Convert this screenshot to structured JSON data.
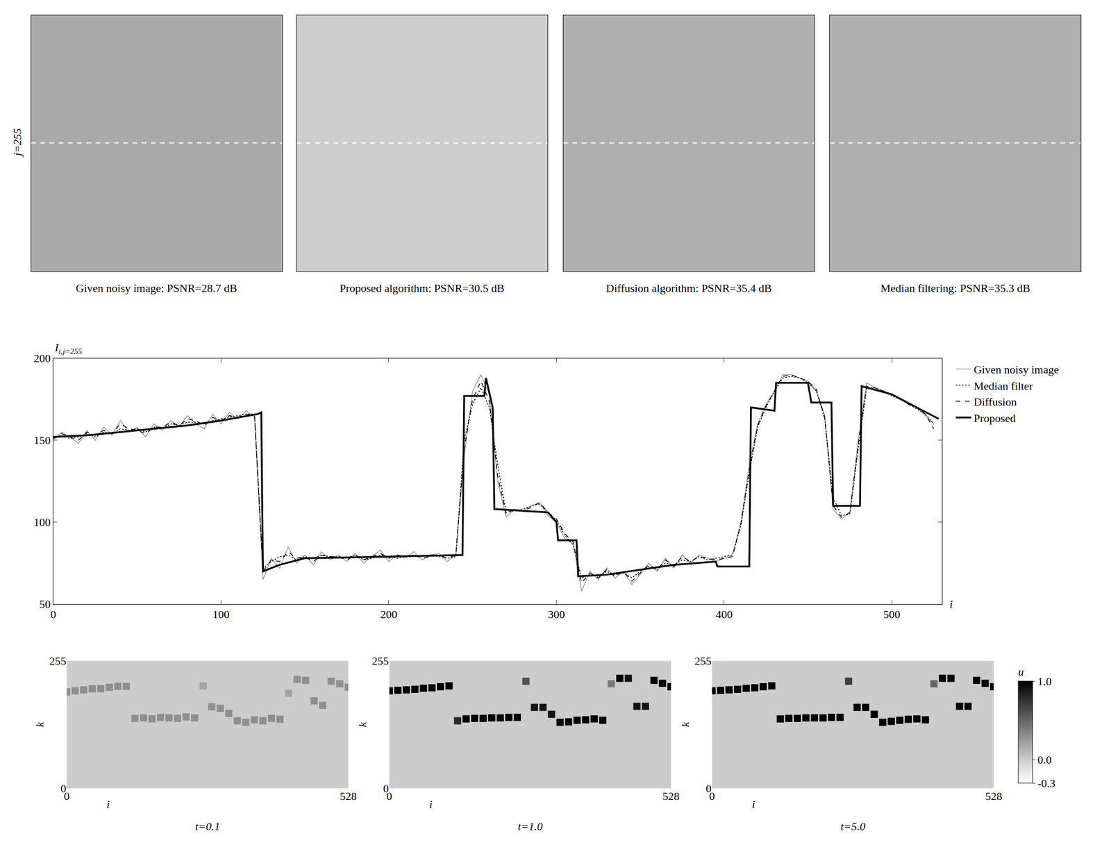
{
  "chart_data": [
    {
      "type": "image_panels",
      "captions": [
        "Given noisy image: PSNR=28.7 dB",
        "Proposed algorithm: PSNR=30.5 dB",
        "Diffusion algorithm: PSNR=35.4 dB",
        "Median filtering: PSNR=35.3 dB"
      ],
      "row_label": "j=255",
      "row": 255,
      "xlim": [
        0,
        528
      ],
      "ylim": [
        511,
        0
      ],
      "tick_labels": false
    },
    {
      "type": "line",
      "ylabel": {
        "main": "I",
        "sub": "i,j=255"
      },
      "xlabel": "i",
      "xlim": [
        0,
        530
      ],
      "ylim": [
        50,
        200
      ],
      "xticks": [
        0,
        100,
        200,
        300,
        400,
        500
      ],
      "yticks": [
        50,
        100,
        150,
        200
      ],
      "grid": false,
      "legend": "right",
      "x": [
        0,
        5,
        10,
        15,
        20,
        25,
        30,
        35,
        40,
        45,
        50,
        55,
        60,
        65,
        70,
        75,
        80,
        85,
        90,
        95,
        100,
        105,
        110,
        115,
        120,
        125,
        130,
        135,
        140,
        145,
        150,
        155,
        160,
        165,
        170,
        175,
        180,
        185,
        190,
        195,
        200,
        205,
        210,
        215,
        220,
        225,
        230,
        235,
        240,
        245,
        250,
        255,
        260,
        265,
        270,
        275,
        280,
        285,
        290,
        295,
        300,
        305,
        310,
        315,
        320,
        325,
        330,
        335,
        340,
        345,
        350,
        355,
        360,
        365,
        370,
        375,
        380,
        385,
        390,
        395,
        400,
        405,
        410,
        415,
        420,
        425,
        430,
        435,
        440,
        445,
        450,
        455,
        460,
        465,
        470,
        475,
        480,
        485,
        490,
        495,
        500,
        505,
        510,
        515,
        520,
        525
      ],
      "series": [
        {
          "name": "Given noisy image",
          "color": "#999999",
          "line_style": "solid",
          "values": [
            150,
            155,
            152,
            148,
            156,
            150,
            158,
            153,
            162,
            155,
            158,
            152,
            160,
            156,
            162,
            158,
            165,
            160,
            157,
            166,
            160,
            167,
            163,
            168,
            164,
            65,
            78,
            72,
            85,
            75,
            80,
            74,
            82,
            77,
            80,
            76,
            81,
            75,
            79,
            83,
            76,
            80,
            78,
            82,
            77,
            80,
            81,
            76,
            80,
            140,
            180,
            190,
            178,
            125,
            103,
            108,
            107,
            110,
            112,
            104,
            100,
            90,
            87,
            58,
            70,
            65,
            72,
            66,
            70,
            62,
            68,
            75,
            70,
            78,
            72,
            80,
            75,
            80,
            78,
            76,
            78,
            80,
            100,
            135,
            160,
            172,
            180,
            190,
            190,
            188,
            186,
            180,
            165,
            108,
            102,
            106,
            150,
            185,
            182,
            180,
            178,
            175,
            172,
            170,
            165,
            160
          ]
        },
        {
          "name": "Median filter",
          "color": "#000000",
          "line_style": "dotted",
          "values": [
            152,
            153,
            151,
            152,
            154,
            152,
            155,
            154,
            157,
            156,
            157,
            155,
            158,
            157,
            160,
            159,
            161,
            161,
            160,
            162,
            163,
            164,
            165,
            166,
            166,
            72,
            76,
            79,
            80,
            77,
            79,
            78,
            80,
            79,
            79,
            78,
            80,
            77,
            78,
            80,
            79,
            78,
            79,
            80,
            79,
            80,
            79,
            78,
            79,
            150,
            172,
            182,
            170,
            135,
            106,
            107,
            108,
            110,
            111,
            106,
            101,
            92,
            86,
            66,
            68,
            67,
            70,
            68,
            69,
            66,
            70,
            73,
            71,
            75,
            74,
            77,
            76,
            79,
            77,
            78,
            79,
            80,
            98,
            130,
            158,
            170,
            180,
            188,
            189,
            188,
            185,
            180,
            163,
            115,
            104,
            105,
            145,
            182,
            182,
            180,
            177,
            175,
            172,
            169,
            166,
            160
          ]
        },
        {
          "name": "Diffusion",
          "color": "#000000",
          "line_style": "dashed",
          "values": [
            151,
            154,
            152,
            150,
            155,
            153,
            156,
            154,
            160,
            157,
            156,
            154,
            158,
            158,
            161,
            159,
            163,
            162,
            159,
            164,
            162,
            165,
            164,
            166,
            165,
            70,
            77,
            76,
            82,
            78,
            79,
            76,
            80,
            79,
            79,
            77,
            80,
            77,
            79,
            81,
            78,
            80,
            79,
            80,
            78,
            79,
            80,
            78,
            80,
            145,
            175,
            186,
            174,
            128,
            105,
            108,
            107,
            109,
            112,
            106,
            102,
            93,
            88,
            63,
            69,
            66,
            71,
            67,
            70,
            64,
            69,
            74,
            71,
            77,
            73,
            79,
            76,
            79,
            78,
            77,
            78,
            79,
            99,
            132,
            159,
            171,
            180,
            189,
            190,
            188,
            186,
            181,
            164,
            110,
            103,
            106,
            148,
            183,
            182,
            180,
            178,
            175,
            172,
            170,
            166,
            157
          ]
        },
        {
          "name": "Proposed",
          "color": "#000000",
          "line_style": "thick",
          "x": [
            0,
            20,
            40,
            60,
            80,
            100,
            122,
            124,
            125,
            135,
            150,
            200,
            244,
            245,
            257,
            258,
            262,
            263,
            295,
            300,
            301,
            312,
            313,
            330,
            350,
            370,
            395,
            396,
            415,
            416,
            430,
            431,
            450,
            452,
            464,
            465,
            481,
            482,
            500,
            528
          ],
          "values": [
            152,
            153,
            155,
            157,
            159,
            162,
            166,
            167,
            70,
            74,
            78,
            79,
            80,
            177,
            177,
            188,
            170,
            108,
            106,
            100,
            89,
            89,
            67,
            68,
            71,
            74,
            76,
            73,
            73,
            170,
            168,
            185,
            185,
            173,
            173,
            110,
            110,
            183,
            178,
            163
          ]
        }
      ]
    },
    {
      "type": "scatter",
      "marker": "square",
      "xlabel": "i",
      "ylabel": "k",
      "xlim": [
        0,
        528
      ],
      "ylim": [
        0,
        255
      ],
      "xticks": [
        0,
        528
      ],
      "yticks": [
        0,
        255
      ],
      "x": [
        0,
        16,
        32,
        48,
        64,
        80,
        96,
        112,
        128,
        144,
        160,
        176,
        192,
        208,
        224,
        240,
        256,
        272,
        288,
        304,
        320,
        336,
        352,
        368,
        384,
        400,
        416,
        432,
        448,
        464,
        480,
        496,
        512,
        528
      ],
      "colorbar": {
        "title": "u",
        "range": [
          -0.3,
          1.0
        ],
        "ticks": [
          -0.3,
          {
            "value": 0,
            "label": "0.0"
          },
          {
            "value": 1,
            "label": "1.0"
          }
        ]
      },
      "panels": [
        {
          "title": "t=0.1",
          "k": [
            193,
            195,
            197,
            199,
            199,
            202,
            204,
            204,
            140,
            141,
            139,
            142,
            141,
            140,
            143,
            141,
            205,
            163,
            160,
            150,
            135,
            132,
            137,
            135,
            140,
            138,
            190,
            218,
            216,
            175,
            166,
            214,
            209,
            202
          ],
          "u": [
            0.3,
            0.3,
            0.3,
            0.3,
            0.3,
            0.3,
            0.3,
            0.3,
            0.3,
            0.3,
            0.3,
            0.3,
            0.3,
            0.3,
            0.3,
            0.3,
            0.2,
            0.3,
            0.3,
            0.3,
            0.3,
            0.3,
            0.3,
            0.3,
            0.3,
            0.3,
            0.2,
            0.3,
            0.3,
            0.3,
            0.3,
            0.3,
            0.3,
            0.3
          ]
        },
        {
          "title": "t=1.0",
          "k": [
            195,
            196,
            197,
            198,
            200,
            201,
            203,
            205,
            135,
            139,
            140,
            140,
            141,
            141,
            142,
            142,
            214,
            162,
            162,
            148,
            132,
            133,
            136,
            137,
            139,
            136,
            209,
            220,
            220,
            164,
            164,
            216,
            210,
            203
          ],
          "u": [
            1,
            1,
            1,
            1,
            1,
            1,
            1,
            1,
            0.8,
            1,
            1,
            1,
            1,
            1,
            1,
            1,
            0.6,
            0.9,
            0.9,
            0.9,
            1,
            1,
            1,
            1,
            1,
            1,
            0.4,
            1,
            0.9,
            0.9,
            0.9,
            1,
            1,
            1
          ]
        },
        {
          "title": "t=5.0",
          "k": [
            195,
            196,
            197,
            198,
            200,
            201,
            203,
            205,
            139,
            140,
            140,
            141,
            141,
            141,
            142,
            142,
            214,
            162,
            162,
            148,
            132,
            134,
            136,
            138,
            139,
            137,
            209,
            220,
            220,
            164,
            164,
            216,
            210,
            203
          ],
          "u": [
            1,
            1,
            1,
            1,
            1,
            1,
            1,
            1,
            1,
            1,
            1,
            1,
            1,
            1,
            1,
            1,
            0.7,
            1,
            1,
            1,
            1,
            1,
            1,
            1,
            1,
            1,
            0.5,
            1,
            1,
            1,
            1,
            1,
            1,
            1
          ]
        }
      ]
    }
  ]
}
